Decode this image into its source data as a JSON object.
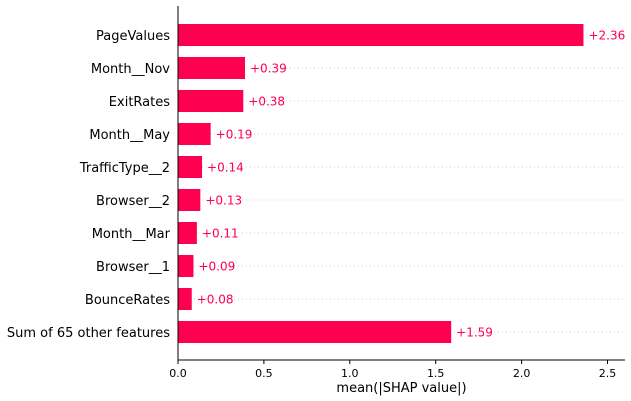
{
  "chart_data": {
    "type": "bar",
    "orientation": "horizontal",
    "categories": [
      "PageValues",
      "Month__Nov",
      "ExitRates",
      "Month__May",
      "TrafficType__2",
      "Browser__2",
      "Month__Mar",
      "Browser__1",
      "BounceRates",
      "Sum of 65 other features"
    ],
    "values": [
      2.36,
      0.39,
      0.38,
      0.19,
      0.14,
      0.13,
      0.11,
      0.09,
      0.08,
      1.59
    ],
    "value_labels": [
      "+2.36",
      "+0.39",
      "+0.38",
      "+0.19",
      "+0.14",
      "+0.13",
      "+0.11",
      "+0.09",
      "+0.08",
      "+1.59"
    ],
    "xticks": [
      0.0,
      0.5,
      1.0,
      1.5,
      2.0,
      2.5
    ],
    "xtick_labels": [
      "0.0",
      "0.5",
      "1.0",
      "1.5",
      "2.0",
      "2.5"
    ],
    "xlim": [
      0,
      2.61
    ],
    "xlabel": "mean(|SHAP value|)",
    "title": "",
    "bar_color": "#ff0051",
    "label_color": "#ff0051",
    "grid": "dotted horizontal lines per feature"
  }
}
